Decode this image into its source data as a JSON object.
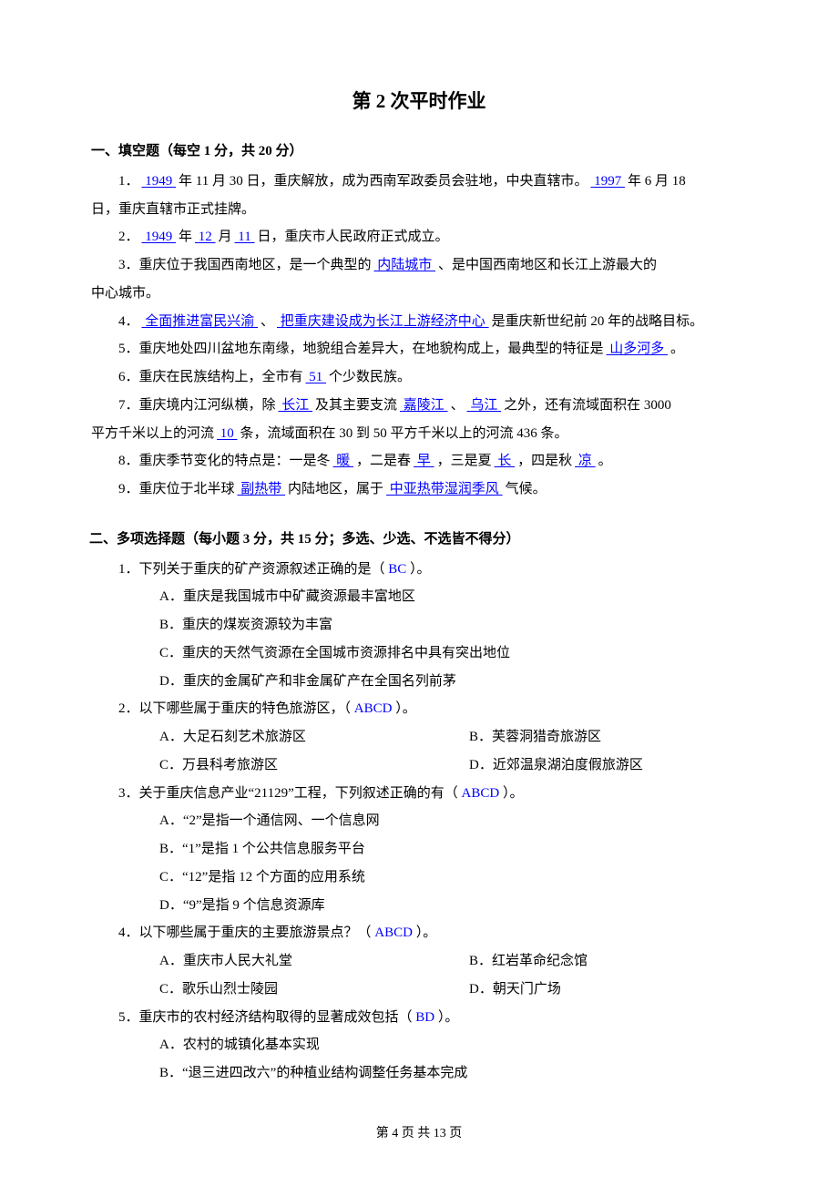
{
  "title": "第 2 次平时作业",
  "section1_title": "一、填空题（每空 1 分，共 20 分）",
  "fill": {
    "q1a": "1．",
    "q1_blank1": "  1949   ",
    "q1_mid1": "年 11 月 30 日，重庆解放，成为西南军政委员会驻地，中央直辖市。",
    "q1_blank2": "  1997  ",
    "q1_mid2": "年 6 月 18",
    "q1_line2": "日，重庆直辖市正式挂牌。",
    "q2a": "2．",
    "q2_b1": "  1949  ",
    "q2_m1": "年",
    "q2_b2": "  12  ",
    "q2_m2": "月",
    "q2_b3": "  11  ",
    "q2_m3": "日，重庆市人民政府正式成立。",
    "q3a": "3．重庆位于我国西南地区，是一个典型的",
    "q3_b1": "  内陆城市  ",
    "q3_m1": "、是中国西南地区和长江上游最大的",
    "q3_line2": "中心城市。",
    "q4a": "4．",
    "q4_b1": "  全面推进富民兴渝  ",
    "q4_m1": "、",
    "q4_b2": "  把重庆建设成为长江上游经济中心 ",
    "q4_m2": "是重庆新世纪前 20 年的战略目标。",
    "q5a": "5．重庆地处四川盆地东南缘，地貌组合差异大，在地貌构成上，最典型的特征是",
    "q5_b1": "  山多河多    ",
    "q5_m1": "。",
    "q6a": "6．重庆在民族结构上，全市有",
    "q6_b1": "  51  ",
    "q6_m1": "个少数民族。",
    "q7a": "7．重庆境内江河纵横，除",
    "q7_b1": "  长江  ",
    "q7_m1": "及其主要支流",
    "q7_b2": "  嘉陵江  ",
    "q7_m2": "、",
    "q7_b3": "  乌江   ",
    "q7_m3": "之外，还有流域面积在 3000",
    "q7_line2a": "平方千米以上的河流",
    "q7_b4": "  10  ",
    "q7_line2b": "条，流域面积在 30 到 50 平方千米以上的河流 436 条。",
    "q8a": "8．重庆季节变化的特点是：一是冬",
    "q8_b1": "  暖  ",
    "q8_m1": "，二是春",
    "q8_b2": "  早  ",
    "q8_m2": "，三是夏",
    "q8_b3": "  长  ",
    "q8_m3": "，四是秋",
    "q8_b4": "  凉  ",
    "q8_m4": "。",
    "q9a": "9．重庆位于北半球",
    "q9_b1": "  副热带   ",
    "q9_m1": "内陆地区，属于",
    "q9_b2": "  中亚热带湿润季风  ",
    "q9_m2": "气候。"
  },
  "section2_title": "二、多项选择题（每小题 3 分，共 15 分；多选、少选、不选皆不得分）",
  "mc": {
    "q1": {
      "stem_a": "1．下列关于重庆的矿产资源叙述正确的是（   ",
      "ans": "BC",
      "stem_b": "   ）。",
      "A": "A．重庆是我国城市中矿藏资源最丰富地区",
      "B": "B．重庆的煤炭资源较为丰富",
      "C": "C．重庆的天然气资源在全国城市资源排名中具有突出地位",
      "D": "D．重庆的金属矿产和非金属矿产在全国名列前茅"
    },
    "q2": {
      "stem_a": "2．以下哪些属于重庆的特色旅游区，（   ",
      "ans": "ABCD",
      "stem_b": "   ）。",
      "A": "A．大足石刻艺术旅游区",
      "B": "B．芙蓉洞猎奇旅游区",
      "C": "C．万县科考旅游区",
      "D": "D．近郊温泉湖泊度假旅游区"
    },
    "q3": {
      "stem_a": "3．关于重庆信息产业“21129”工程，下列叙述正确的有（   ",
      "ans": "ABCD",
      "stem_b": "   ）。",
      "A": "A．“2”是指一个通信网、一个信息网",
      "B": "B．“1”是指 1 个公共信息服务平台",
      "C": "C．“12”是指 12 个方面的应用系统",
      "D": "D．“9”是指 9 个信息资源库"
    },
    "q4": {
      "stem_a": "4．以下哪些属于重庆的主要旅游景点？（   ",
      "ans": "ABCD",
      "stem_b": "   ）。",
      "A": "A．重庆市人民大礼堂",
      "B": "B．红岩革命纪念馆",
      "C": "C．歌乐山烈士陵园",
      "D": "D．朝天门广场"
    },
    "q5": {
      "stem_a": "5．重庆市的农村经济结构取得的显著成效包括（   ",
      "ans": "BD",
      "stem_b": "    ）。",
      "A": "A．农村的城镇化基本实现",
      "B": "B．“退三进四改六”的种植业结构调整任务基本完成"
    }
  },
  "footer": "第 4 页 共 13 页"
}
